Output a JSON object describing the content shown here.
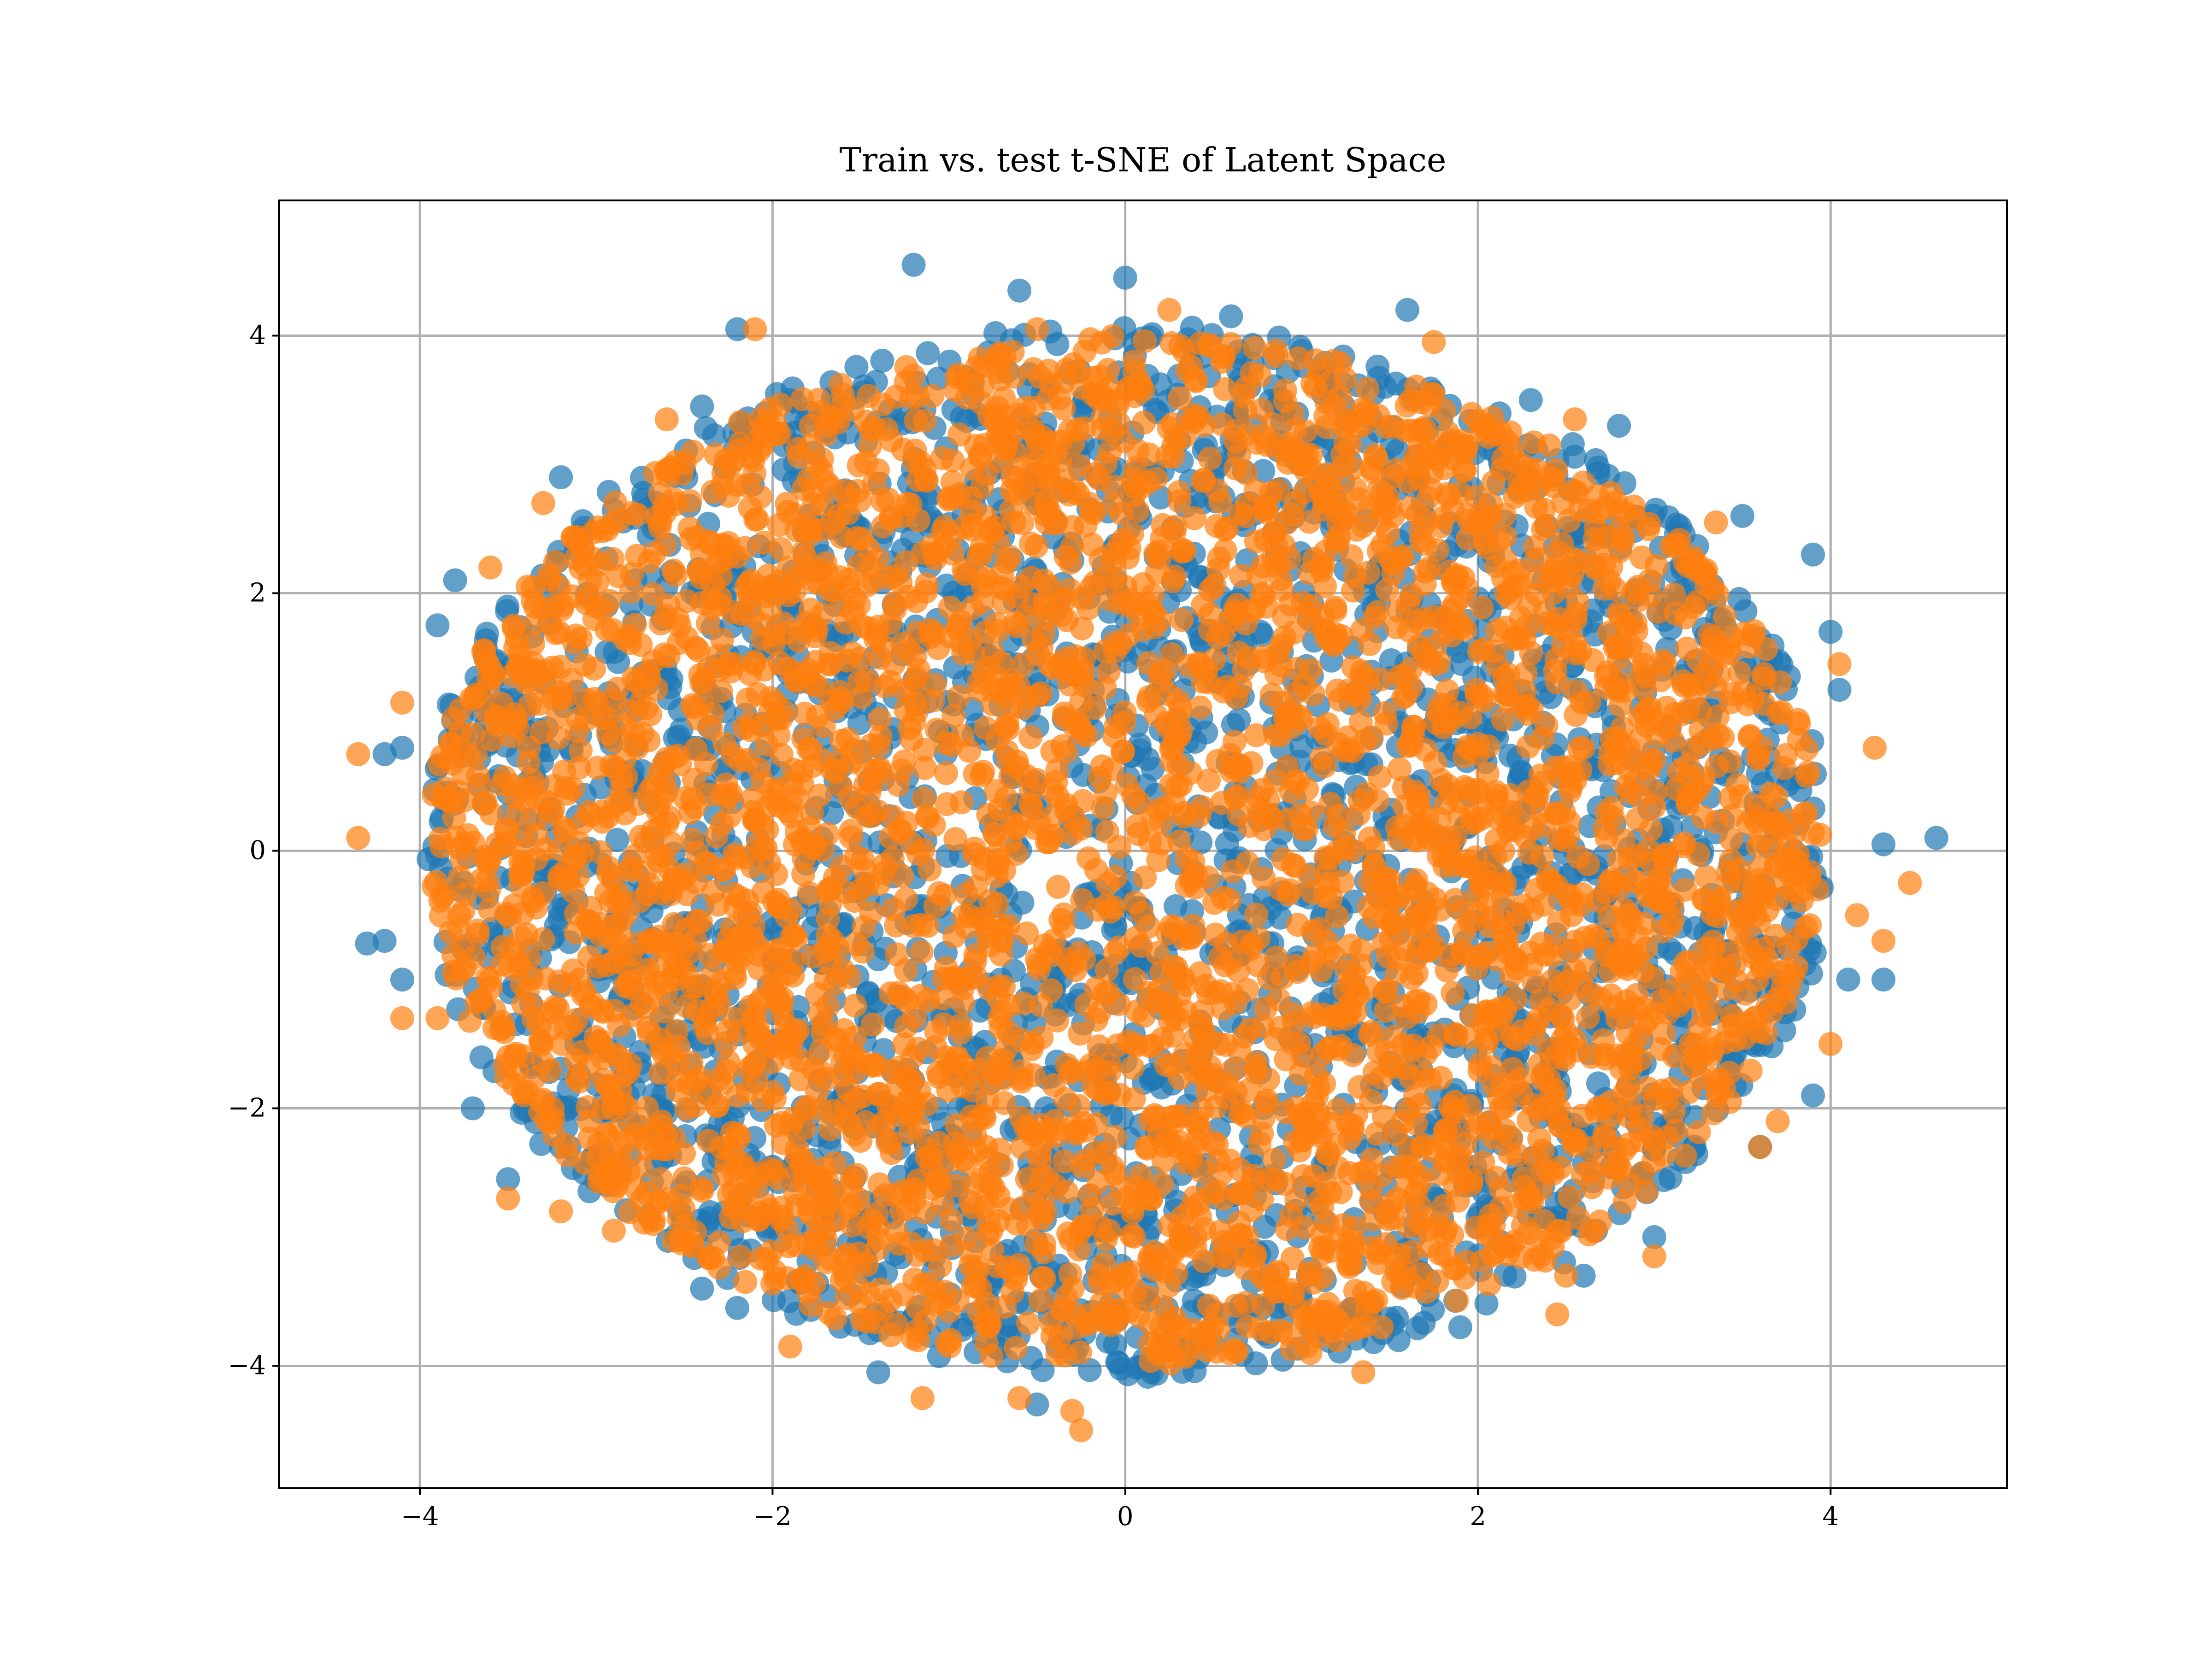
{
  "chart_data": {
    "type": "scatter",
    "title": "Train vs. test t-SNE of Latent Space",
    "xlabel": "",
    "ylabel": "",
    "xlim": [
      -4.8,
      5.0
    ],
    "ylim": [
      -4.95,
      5.05
    ],
    "xticks": [
      -4,
      -2,
      0,
      2,
      4
    ],
    "yticks": [
      -4,
      -2,
      0,
      2,
      4
    ],
    "xtick_labels": [
      "−4",
      "−2",
      "0",
      "2",
      "4"
    ],
    "ytick_labels": [
      "−4",
      "−2",
      "0",
      "2",
      "4"
    ],
    "grid": true,
    "legend": "none",
    "series": [
      {
        "color": "#1f77b4",
        "alpha": 0.7,
        "cloud": {
          "center": [
            0.0,
            0.0
          ],
          "radius_x": 4.0,
          "radius_y": 4.1
        },
        "outliers": [
          [
            -1.2,
            4.55
          ],
          [
            0.0,
            4.45
          ],
          [
            1.6,
            4.2
          ],
          [
            -0.6,
            4.35
          ],
          [
            0.6,
            4.15
          ],
          [
            4.6,
            0.1
          ],
          [
            4.3,
            0.05
          ],
          [
            4.3,
            -1.0
          ],
          [
            4.1,
            -1.0
          ],
          [
            4.0,
            1.7
          ],
          [
            4.05,
            1.25
          ],
          [
            3.9,
            2.3
          ],
          [
            3.5,
            2.6
          ],
          [
            -4.2,
            -0.7
          ],
          [
            -4.3,
            -0.72
          ],
          [
            -4.1,
            -1.0
          ],
          [
            -4.2,
            0.75
          ],
          [
            -4.1,
            0.8
          ],
          [
            -3.8,
            2.1
          ],
          [
            -3.9,
            1.75
          ],
          [
            -3.2,
            2.9
          ],
          [
            -2.4,
            3.45
          ],
          [
            -2.2,
            4.05
          ],
          [
            -1.9,
            3.5
          ],
          [
            -0.5,
            -4.3
          ],
          [
            -1.4,
            -4.05
          ],
          [
            0.15,
            -4.05
          ],
          [
            1.55,
            -3.8
          ],
          [
            1.9,
            -3.7
          ],
          [
            2.6,
            -3.3
          ],
          [
            3.0,
            -3.0
          ],
          [
            3.6,
            -2.3
          ],
          [
            3.9,
            -1.9
          ],
          [
            -2.2,
            -3.55
          ],
          [
            -2.4,
            -3.4
          ],
          [
            -3.5,
            -2.55
          ],
          [
            -3.7,
            -2.0
          ],
          [
            -3.2,
            -2.3
          ],
          [
            2.8,
            3.3
          ],
          [
            2.3,
            3.5
          ]
        ]
      },
      {
        "color": "#ff7f0e",
        "alpha": 0.7,
        "cloud": {
          "center": [
            0.0,
            0.0
          ],
          "radius_x": 3.95,
          "radius_y": 4.0
        },
        "outliers": [
          [
            -4.35,
            0.75
          ],
          [
            -4.35,
            0.1
          ],
          [
            -4.1,
            1.15
          ],
          [
            -4.1,
            -1.3
          ],
          [
            -3.9,
            -1.3
          ],
          [
            -3.5,
            -2.7
          ],
          [
            -3.6,
            2.2
          ],
          [
            -3.3,
            2.7
          ],
          [
            -2.6,
            3.35
          ],
          [
            -2.1,
            4.05
          ],
          [
            0.25,
            4.2
          ],
          [
            -0.5,
            4.05
          ],
          [
            1.75,
            3.95
          ],
          [
            2.55,
            3.35
          ],
          [
            3.35,
            2.55
          ],
          [
            4.25,
            0.8
          ],
          [
            4.45,
            -0.25
          ],
          [
            4.3,
            -0.7
          ],
          [
            4.15,
            -0.5
          ],
          [
            4.05,
            1.45
          ],
          [
            4.0,
            -1.5
          ],
          [
            3.6,
            -2.3
          ],
          [
            3.0,
            -3.15
          ],
          [
            2.45,
            -3.6
          ],
          [
            1.35,
            -4.05
          ],
          [
            -0.25,
            -4.5
          ],
          [
            -0.3,
            -4.35
          ],
          [
            -0.6,
            -4.25
          ],
          [
            -1.15,
            -4.25
          ],
          [
            -1.9,
            -3.85
          ],
          [
            -2.9,
            -2.95
          ],
          [
            -3.2,
            -2.8
          ],
          [
            1.05,
            -3.9
          ],
          [
            2.5,
            -3.3
          ],
          [
            3.7,
            -2.1
          ]
        ]
      }
    ]
  }
}
